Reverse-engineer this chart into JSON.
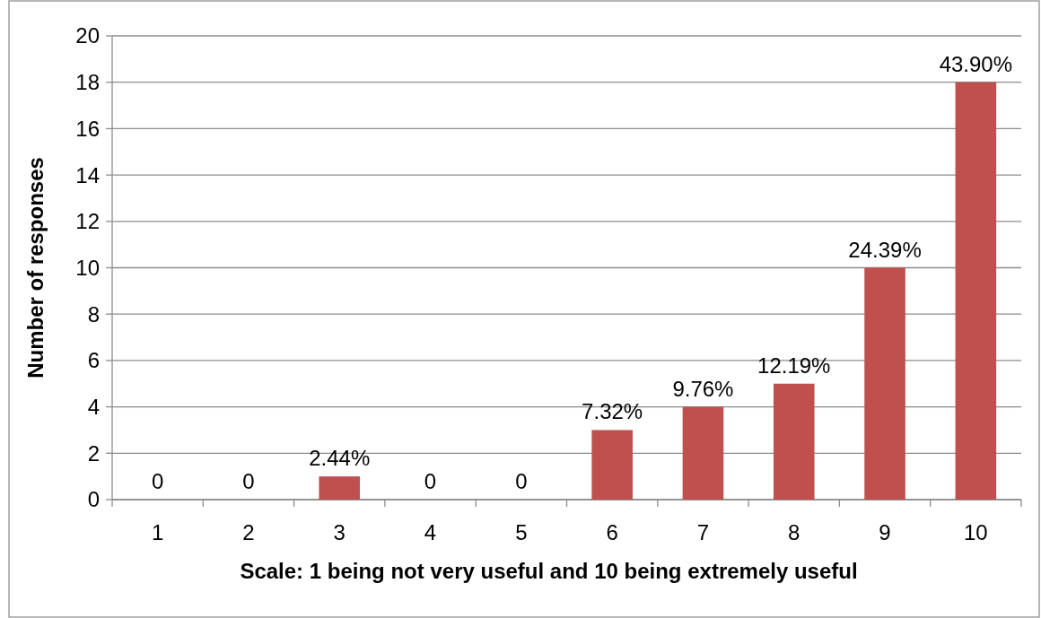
{
  "chart_data": {
    "type": "bar",
    "xlabel": "Scale: 1 being not very useful and 10 being extremely useful",
    "ylabel": "Number of responses",
    "categories": [
      "1",
      "2",
      "3",
      "4",
      "5",
      "6",
      "7",
      "8",
      "9",
      "10"
    ],
    "values": [
      0,
      0,
      1,
      0,
      0,
      3,
      4,
      5,
      10,
      18
    ],
    "annotations": [
      {
        "text": "0",
        "x": "1",
        "y": 0
      },
      {
        "text": "0",
        "x": "2",
        "y": 0
      },
      {
        "text": "2.44%",
        "x": "3",
        "y": 1
      },
      {
        "text": "0",
        "x": "4",
        "y": 0
      },
      {
        "text": "0",
        "x": "5",
        "y": 0
      },
      {
        "text": "7.32%",
        "x": "6",
        "y": 3
      },
      {
        "text": "9.76%",
        "x": "7",
        "y": 4
      },
      {
        "text": "12.19%",
        "x": "8",
        "y": 5
      },
      {
        "text": "24.39%",
        "x": "9",
        "y": 10
      },
      {
        "text": "43.90%",
        "x": "10",
        "y": 18
      }
    ],
    "color": "#c0504d",
    "ylim": [
      0,
      20
    ],
    "yticks": [
      0,
      2,
      4,
      6,
      8,
      10,
      12,
      14,
      16,
      18,
      20
    ],
    "grid": "y"
  }
}
